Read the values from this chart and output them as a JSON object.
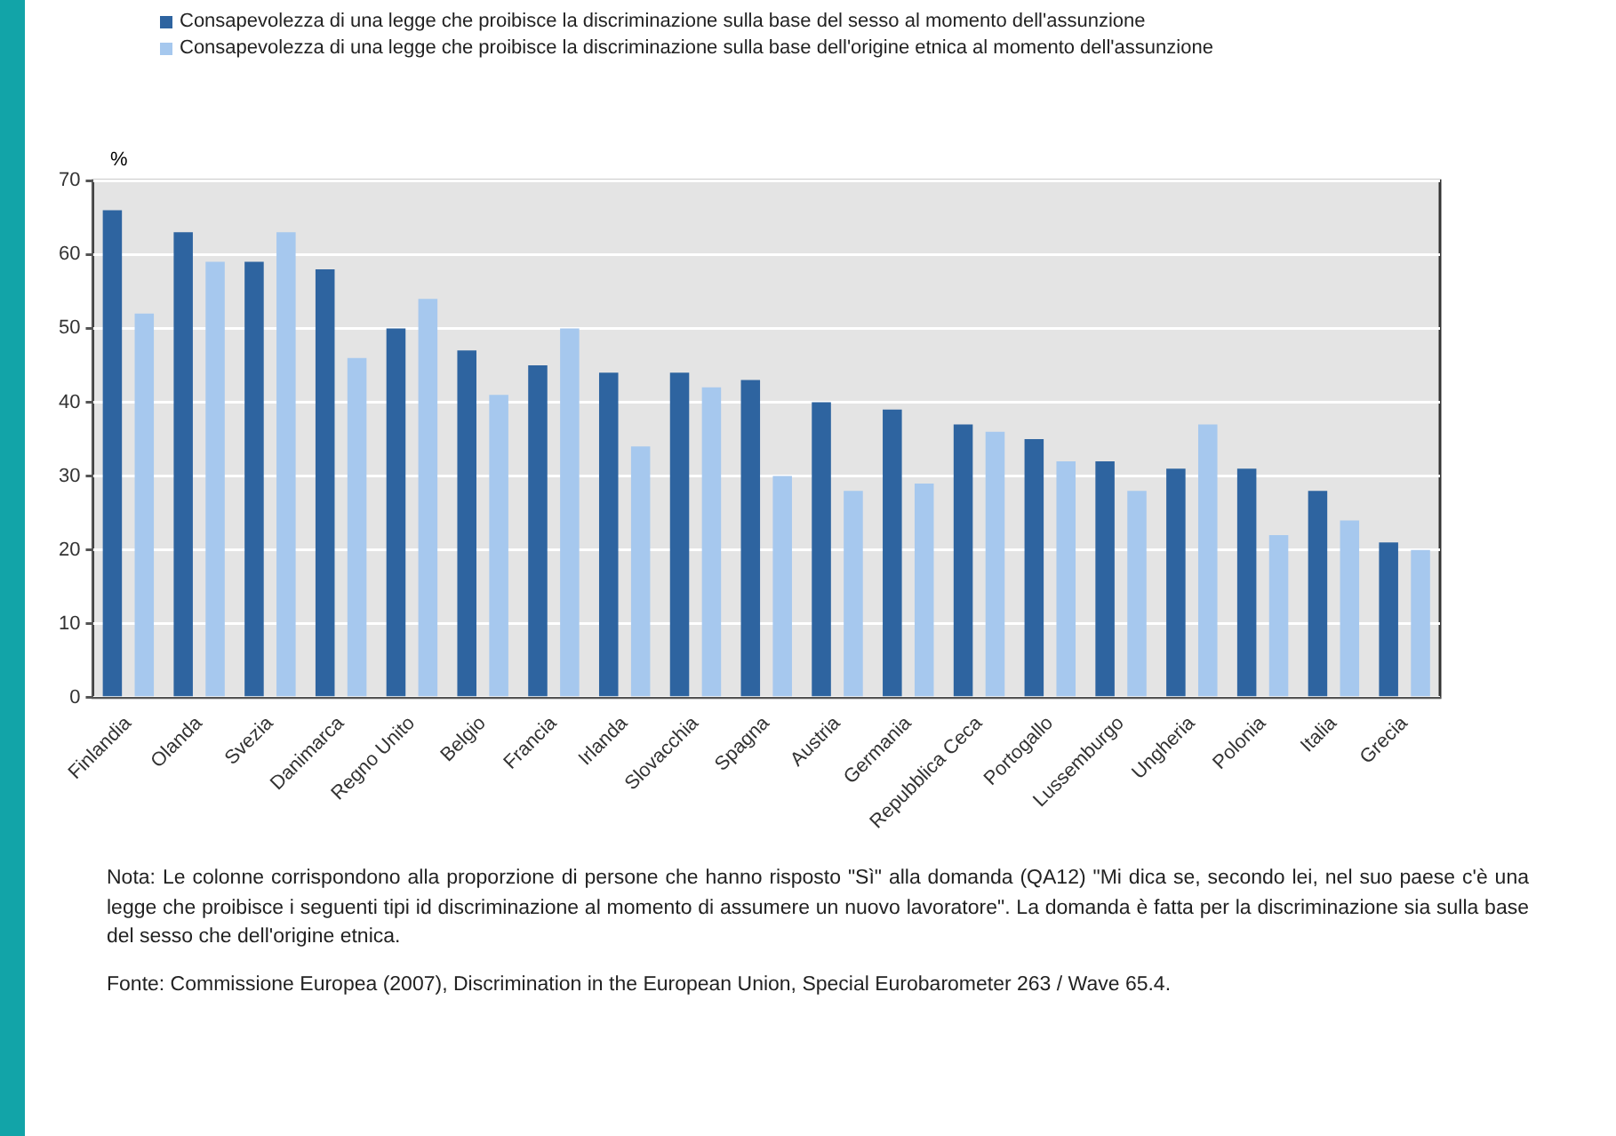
{
  "chart_data": {
    "type": "bar",
    "ylabel": "%",
    "categories": [
      "Finlandia",
      "Olanda",
      "Svezia",
      "Danimarca",
      "Regno Unito",
      "Belgio",
      "Francia",
      "Irlanda",
      "Slovacchia",
      "Spagna",
      "Austria",
      "Germania",
      "Repubblica Ceca",
      "Portogallo",
      "Lussemburgo",
      "Ungheria",
      "Polonia",
      "Italia",
      "Grecia"
    ],
    "series": [
      {
        "name": "Consapevolezza di una legge che proibisce la discriminazione sulla base del sesso al momento dell'assunzione",
        "color": "#2e64a0",
        "values": [
          66,
          63,
          59,
          58,
          50,
          47,
          45,
          44,
          44,
          43,
          40,
          39,
          37,
          35,
          32,
          31,
          31,
          28,
          21
        ]
      },
      {
        "name": "Consapevolezza di una legge che proibisce la discriminazione sulla base dell'origine etnica al momento dell'assunzione",
        "color": "#a6c8ee",
        "values": [
          52,
          59,
          63,
          46,
          54,
          41,
          50,
          34,
          42,
          30,
          28,
          29,
          36,
          32,
          28,
          37,
          22,
          24,
          20
        ]
      }
    ],
    "ylim": [
      0,
      70
    ],
    "yticks": [
      0,
      10,
      20,
      30,
      40,
      50,
      60,
      70
    ],
    "grid": "y",
    "legend": "top left",
    "annotations": [
      "Nota: Le colonne corrispondono alla proporzione di persone che hanno risposto \"Sì\" alla domanda (QA12) \"Mi dica se, secondo lei, nel suo paese c'è una legge che proibisce i seguenti tipi id discriminazione al momento di assumere un nuovo lavoratore\". La domanda è fatta per la discriminazione sia sulla base del sesso che dell'origine etnica.",
      "Fonte: Commissione Europea (2007), Discrimination in the European Union, Special Eurobarometer 263 / Wave 65.4."
    ]
  }
}
